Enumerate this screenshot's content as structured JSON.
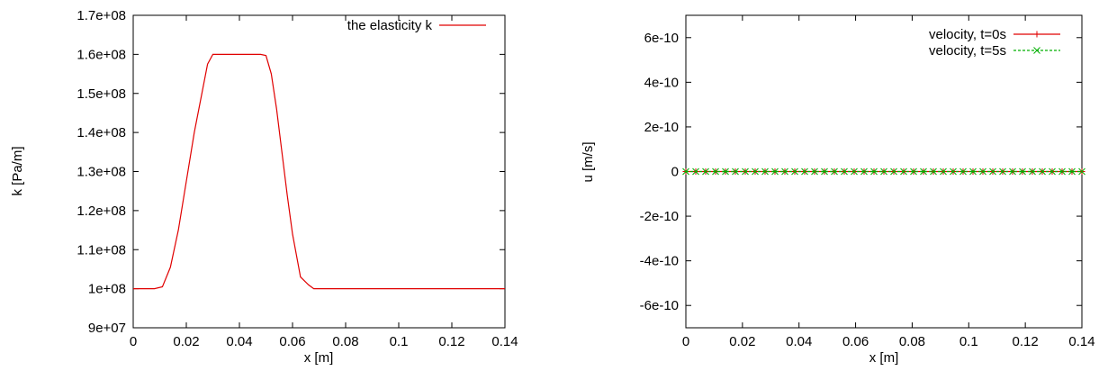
{
  "chart_data": [
    {
      "type": "line",
      "xlabel": "x [m]",
      "ylabel": "k [Pa/m]",
      "xlim": [
        0,
        0.14
      ],
      "ylim": [
        90000000,
        170000000
      ],
      "x_ticks": [
        0,
        0.02,
        0.04,
        0.06,
        0.08,
        0.1,
        0.12,
        0.14
      ],
      "x_tick_labels": [
        "0",
        "0.02",
        "0.04",
        "0.06",
        "0.08",
        "0.1",
        "0.12",
        "0.14"
      ],
      "y_ticks": [
        90000000,
        100000000,
        110000000,
        120000000,
        130000000,
        140000000,
        150000000,
        160000000,
        170000000
      ],
      "y_tick_labels": [
        "9e+07",
        "1e+08",
        "1.1e+08",
        "1.2e+08",
        "1.3e+08",
        "1.4e+08",
        "1.5e+08",
        "1.6e+08",
        "1.7e+08"
      ],
      "grid": false,
      "legend_position": "top-right",
      "series": [
        {
          "name": "the elasticity k",
          "color": "#e00000",
          "marker": "none",
          "x": [
            0,
            0.008,
            0.011,
            0.014,
            0.017,
            0.02,
            0.023,
            0.026,
            0.028,
            0.03,
            0.035,
            0.04,
            0.045,
            0.048,
            0.05,
            0.052,
            0.054,
            0.056,
            0.058,
            0.06,
            0.063,
            0.066,
            0.068,
            0.07,
            0.08,
            0.1,
            0.12,
            0.14
          ],
          "y": [
            100000000,
            100000000,
            100500000,
            105500000,
            115000000,
            127500000,
            140000000,
            150500000,
            157500000,
            160000000,
            160000000,
            160000000,
            160000000,
            160000000,
            159700000,
            155000000,
            146000000,
            135000000,
            124000000,
            114000000,
            103000000,
            101000000,
            100000000,
            100000000,
            100000000,
            100000000,
            100000000,
            100000000
          ]
        }
      ]
    },
    {
      "type": "line",
      "xlabel": "x [m]",
      "ylabel": "u [m/s]",
      "xlim": [
        0,
        0.14
      ],
      "ylim": [
        -7e-10,
        7e-10
      ],
      "x_ticks": [
        0,
        0.02,
        0.04,
        0.06,
        0.08,
        0.1,
        0.12,
        0.14
      ],
      "x_tick_labels": [
        "0",
        "0.02",
        "0.04",
        "0.06",
        "0.08",
        "0.1",
        "0.12",
        "0.14"
      ],
      "y_ticks": [
        6e-10,
        4e-10,
        2e-10,
        0,
        -2e-10,
        -4e-10,
        -6e-10
      ],
      "y_tick_labels": [
        "6e-10",
        "4e-10",
        "2e-10",
        "0",
        "-2e-10",
        "-4e-10",
        "-6e-10"
      ],
      "grid": false,
      "legend_position": "top-right",
      "series": [
        {
          "name": "velocity, t=0s",
          "color": "#e00000",
          "marker": "plus",
          "line_style": "solid",
          "x": [
            0,
            0.0035,
            0.007,
            0.0105,
            0.014,
            0.0175,
            0.021,
            0.0245,
            0.028,
            0.0315,
            0.035,
            0.0385,
            0.042,
            0.0455,
            0.049,
            0.0525,
            0.056,
            0.0595,
            0.063,
            0.0665,
            0.07,
            0.0735,
            0.077,
            0.0805,
            0.084,
            0.0875,
            0.091,
            0.0945,
            0.098,
            0.1015,
            0.105,
            0.1085,
            0.112,
            0.1155,
            0.119,
            0.1225,
            0.126,
            0.1295,
            0.133,
            0.1365,
            0.14
          ],
          "y": [
            0,
            0,
            0,
            0,
            0,
            0,
            0,
            0,
            0,
            0,
            0,
            0,
            0,
            0,
            0,
            0,
            0,
            0,
            0,
            0,
            0,
            0,
            0,
            0,
            0,
            0,
            0,
            0,
            0,
            0,
            0,
            0,
            0,
            0,
            0,
            0,
            0,
            0,
            0,
            0,
            0
          ]
        },
        {
          "name": "velocity, t=5s",
          "color": "#00b000",
          "marker": "x",
          "line_style": "dashed",
          "x": [
            0,
            0.0035,
            0.007,
            0.0105,
            0.014,
            0.0175,
            0.021,
            0.0245,
            0.028,
            0.0315,
            0.035,
            0.0385,
            0.042,
            0.0455,
            0.049,
            0.0525,
            0.056,
            0.0595,
            0.063,
            0.0665,
            0.07,
            0.0735,
            0.077,
            0.0805,
            0.084,
            0.0875,
            0.091,
            0.0945,
            0.098,
            0.1015,
            0.105,
            0.1085,
            0.112,
            0.1155,
            0.119,
            0.1225,
            0.126,
            0.1295,
            0.133,
            0.1365,
            0.14
          ],
          "y": [
            0,
            0,
            0,
            0,
            0,
            0,
            0,
            0,
            0,
            0,
            0,
            0,
            0,
            0,
            0,
            0,
            0,
            0,
            0,
            0,
            0,
            0,
            0,
            0,
            0,
            0,
            0,
            0,
            0,
            0,
            0,
            0,
            0,
            0,
            0,
            0,
            0,
            0,
            0,
            0,
            0
          ]
        }
      ]
    }
  ]
}
